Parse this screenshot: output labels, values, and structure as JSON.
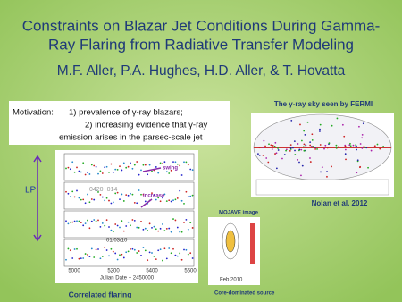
{
  "slide": {
    "title_lines": [
      "Constraints on Blazar Jet Conditions During Gamma-",
      "Ray Flaring from Radiative Transfer Modeling"
    ],
    "authors": "M.F. Aller, P.A. Hughes, H.D. Aller, & T. Hovatta",
    "motivation": {
      "label": "Motivation:",
      "items": [
        "1) prevalence of γ-ray blazars;",
        "2) increasing evidence that γ-ray",
        "emission arises in the parsec-scale jet"
      ]
    },
    "fermi": {
      "caption": "The  γ-ray sky seen by FERMI",
      "credit": "Nolan et al. 2012"
    },
    "lightcurve": {
      "caption": "Correlated flaring",
      "source": "0420−014",
      "annotations": [
        "swing",
        "increase"
      ],
      "date": "01/03/10",
      "xlabel": "Julian Date − 2450000",
      "xticks": [
        "5000",
        "5200",
        "5400",
        "5600"
      ],
      "bracket": "LP"
    },
    "mojave": {
      "title": "MOJAVE image",
      "date": "Feb 2010",
      "caption": "Core-dominated source"
    }
  }
}
